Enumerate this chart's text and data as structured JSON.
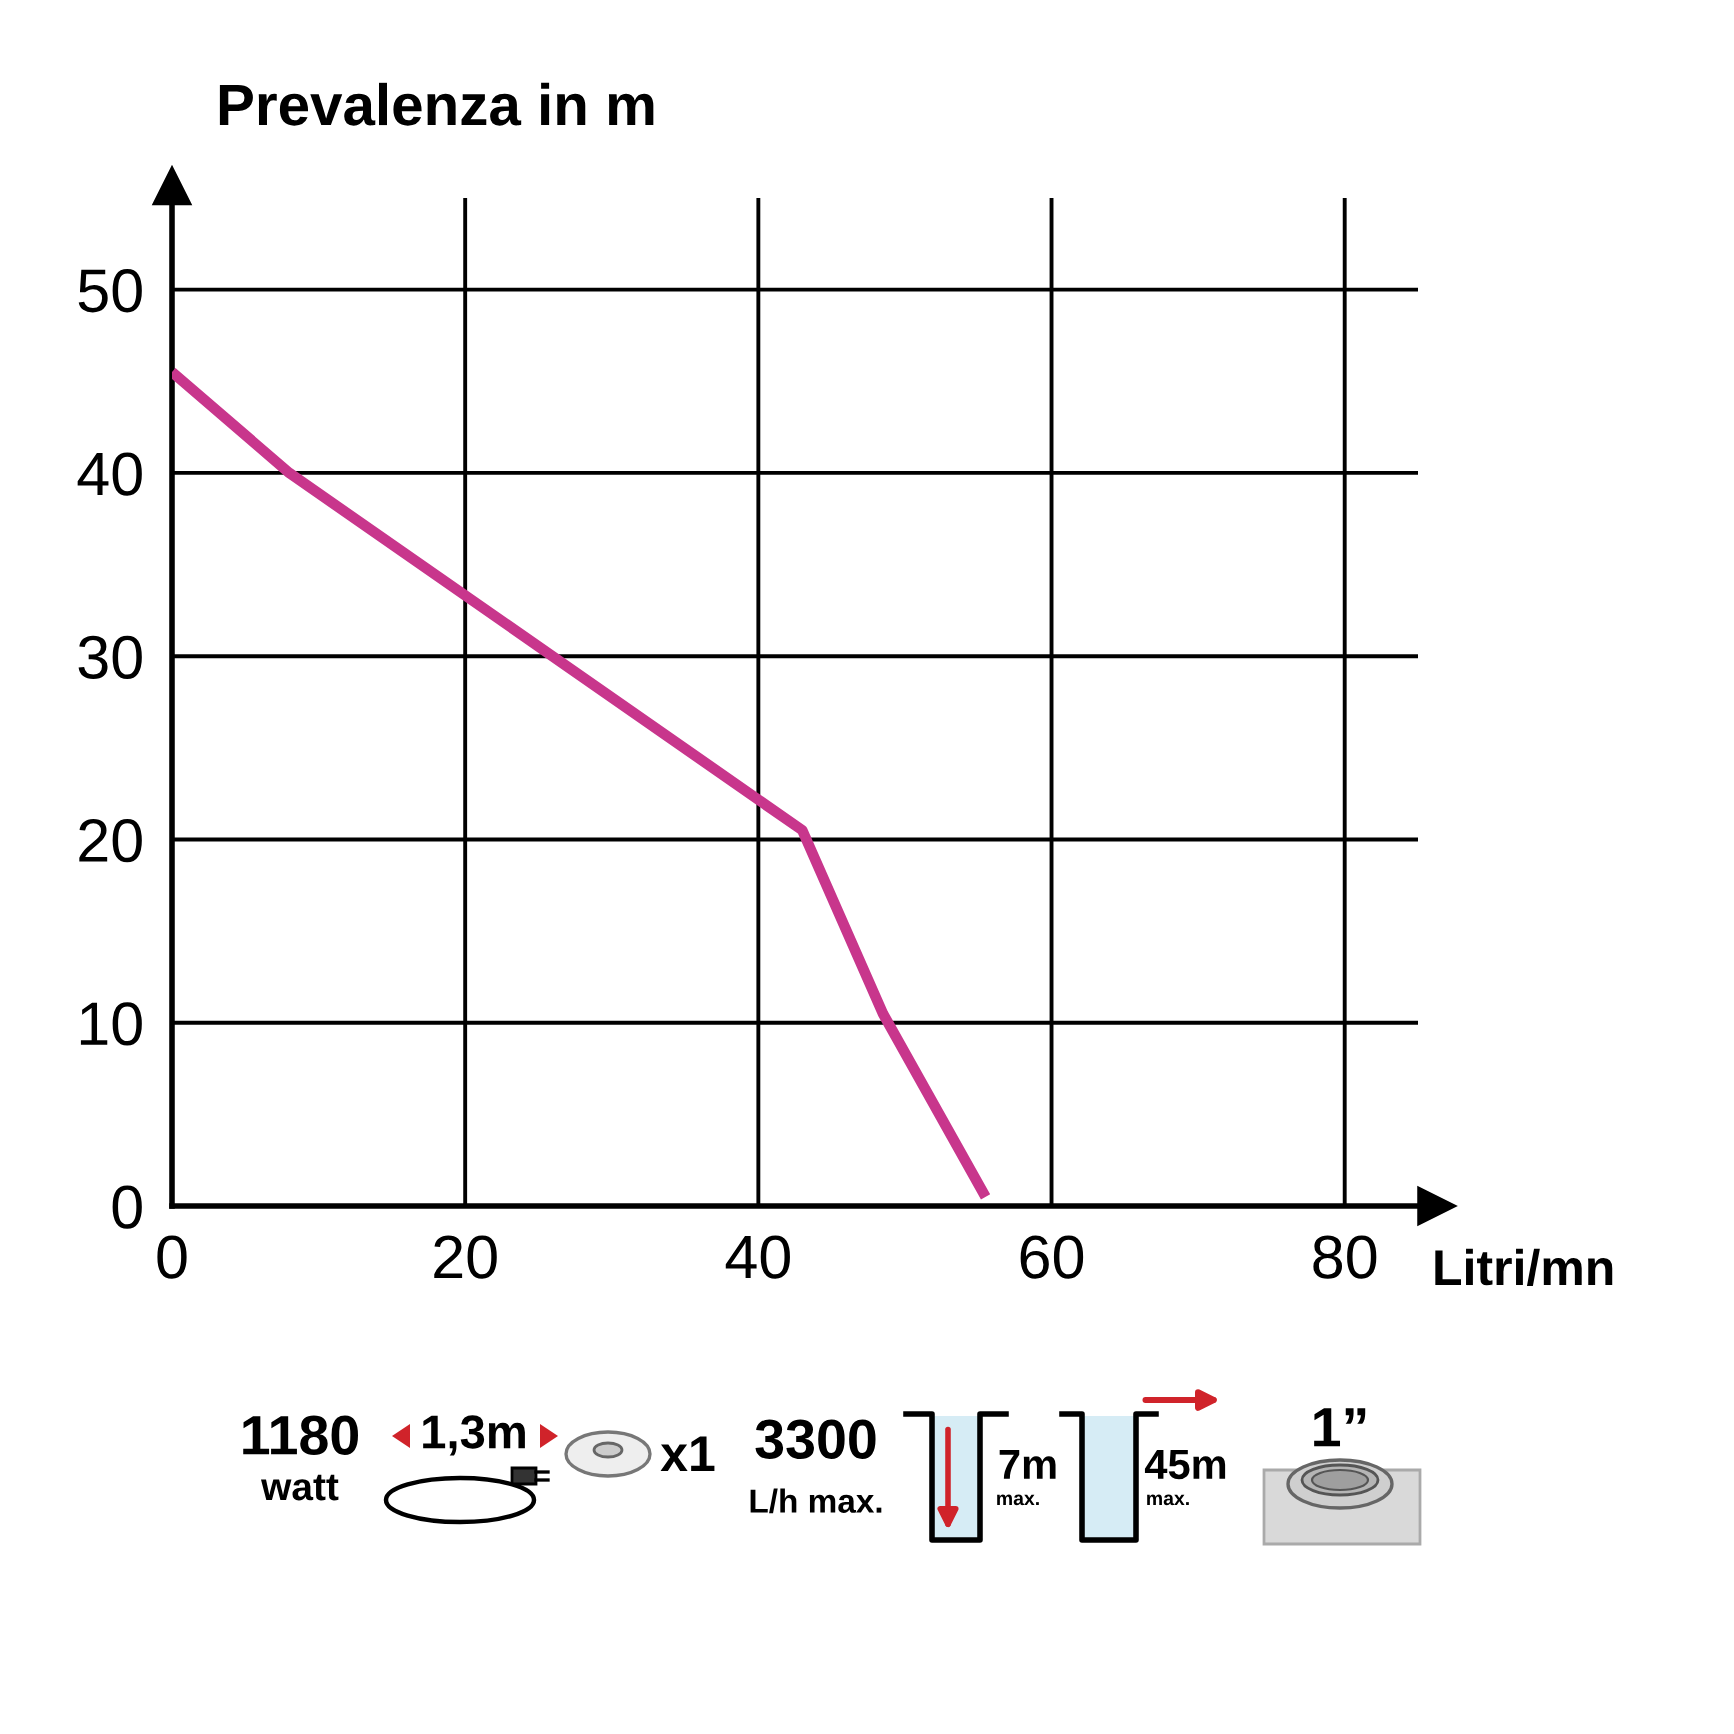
{
  "chart_data": {
    "type": "line",
    "ylabel": "Prevalenza in m",
    "xlabel": "Litri/mn",
    "x": [
      0,
      8,
      43,
      48.5,
      55.5
    ],
    "series": [
      {
        "color": "#c8368c",
        "values": [
          45.5,
          40,
          20.5,
          10.5,
          0.5
        ]
      }
    ],
    "xlim": [
      0,
      85
    ],
    "ylim": [
      0,
      55
    ],
    "xticks": [
      0,
      20,
      40,
      60,
      80
    ],
    "yticks": [
      0,
      10,
      20,
      30,
      40,
      50
    ],
    "grid": true,
    "marker": "none",
    "line_style": "solid",
    "annotations": [
      "1180",
      "watt",
      "1,3m",
      "x1",
      "3300",
      "L/h max.",
      "7m",
      "max.",
      "45m",
      "max.",
      "1”"
    ]
  }
}
